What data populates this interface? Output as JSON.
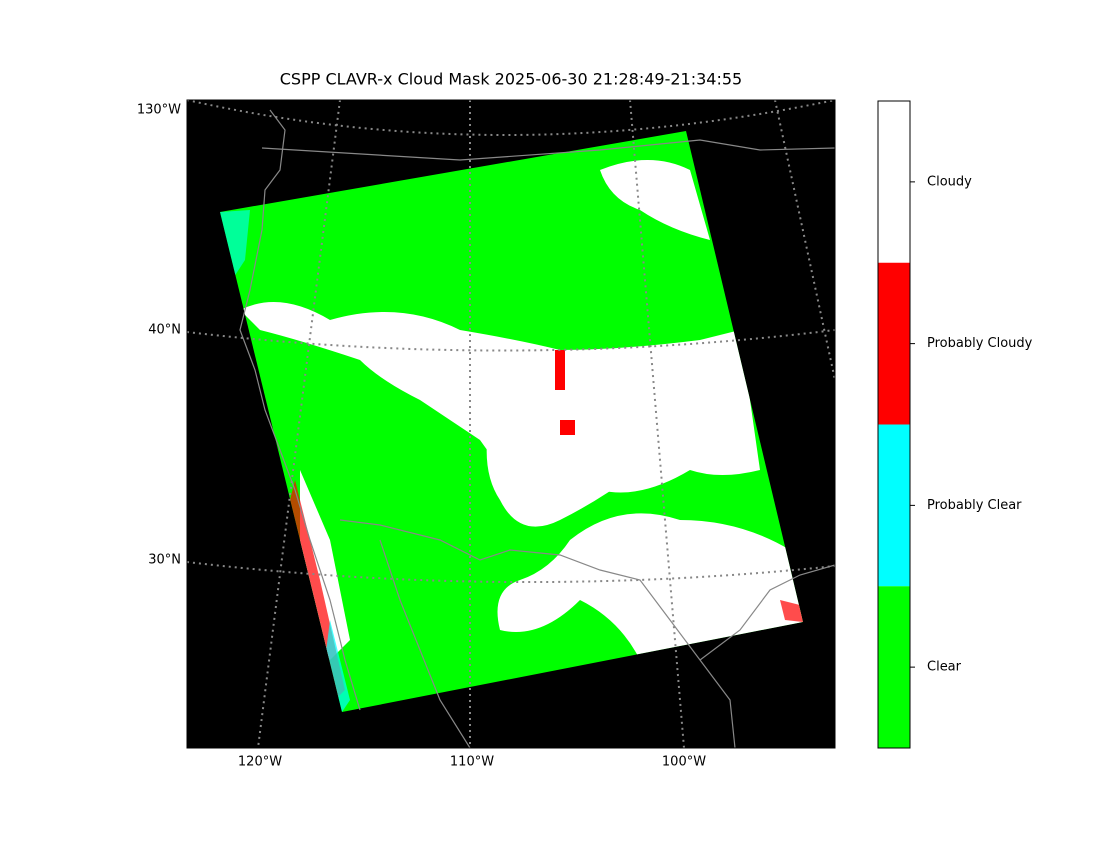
{
  "title": "CSPP CLAVR-x Cloud Mask 2025-06-30 21:28:49-21:34:55",
  "lat_labels": [
    "130°W",
    "40°N",
    "30°N"
  ],
  "lon_labels": [
    "120°W",
    "110°W",
    "100°W"
  ],
  "colorbar": [
    {
      "label": "Cloudy",
      "color": "#ffffff"
    },
    {
      "label": "Probably Cloudy",
      "color": "#ff0000"
    },
    {
      "label": "Probably Clear",
      "color": "#00ffff"
    },
    {
      "label": "Clear",
      "color": "#00ff00"
    }
  ]
}
